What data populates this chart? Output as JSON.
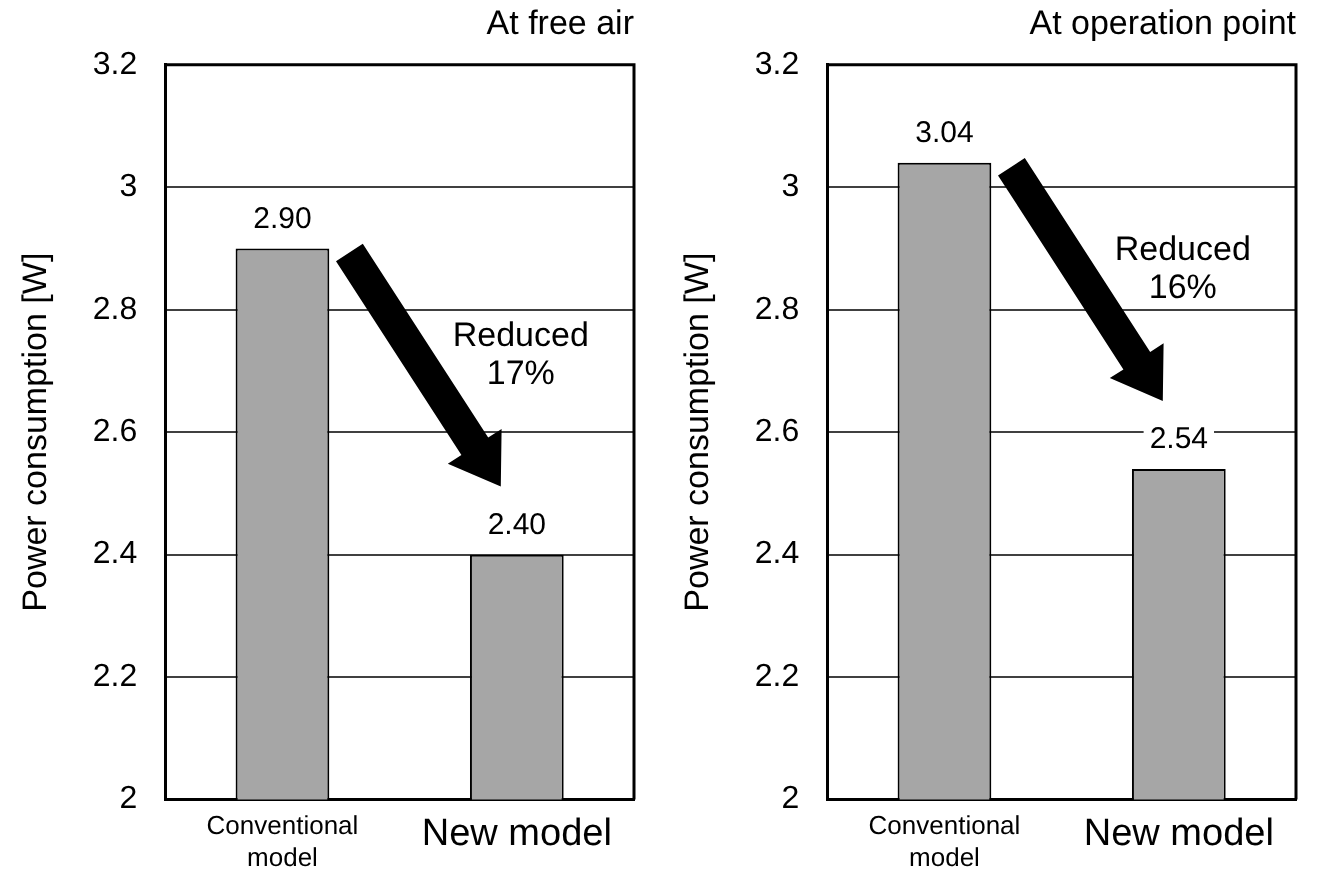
{
  "chart_data": [
    {
      "type": "bar",
      "title": "At free air",
      "ylabel": "Power consumption [W]",
      "categories": [
        "Conventional model",
        "New model"
      ],
      "values": [
        2.9,
        2.4
      ],
      "value_labels": [
        "2.90",
        "2.40"
      ],
      "color": "#a6a6a6",
      "ylim": [
        2,
        3.2
      ],
      "yticks": [
        2,
        2.2,
        2.4,
        2.6,
        2.8,
        3,
        3.2
      ],
      "grid": "y",
      "legend": false,
      "annotations": [
        "Reduced 17%"
      ]
    },
    {
      "type": "bar",
      "title": "At operation point",
      "ylabel": "Power consumption [W]",
      "categories": [
        "Conventional model",
        "New model"
      ],
      "values": [
        3.04,
        2.54
      ],
      "value_labels": [
        "3.04",
        "2.54"
      ],
      "color": "#a6a6a6",
      "ylim": [
        2,
        3.2
      ],
      "yticks": [
        2,
        2.2,
        2.4,
        2.6,
        2.8,
        3,
        3.2
      ],
      "grid": "y",
      "legend": false,
      "annotations": [
        "Reduced 16%"
      ]
    }
  ]
}
